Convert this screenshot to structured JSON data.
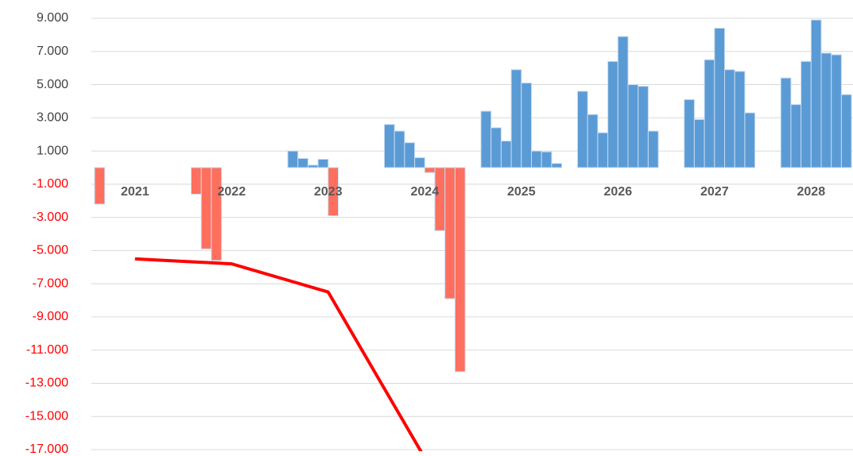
{
  "chart_data": {
    "type": "bar",
    "categories": [
      "2021",
      "2022",
      "2023",
      "2024",
      "2025",
      "2026",
      "2027",
      "2028"
    ],
    "series": [
      {
        "color": "#5b9bd5",
        "negative_color": "#ff6f5e",
        "values": [
          -2200,
          -1600,
          1000,
          2600,
          3400,
          4600,
          null,
          null
        ]
      },
      {
        "color": "#5b9bd5",
        "negative_color": "#ff6f5e",
        "values": [
          null,
          -4900,
          550,
          2200,
          2400,
          3200,
          4100,
          5400
        ]
      },
      {
        "color": "#5b9bd5",
        "negative_color": "#ff6f5e",
        "values": [
          null,
          -5600,
          150,
          1500,
          1600,
          2100,
          2900,
          3800
        ]
      },
      {
        "color": "#5b9bd5",
        "negative_color": "#ff6f5e",
        "values": [
          null,
          null,
          500,
          600,
          5900,
          6400,
          6500,
          6400
        ]
      },
      {
        "color": "#5b9bd5",
        "negative_color": "#ff6f5e",
        "values": [
          null,
          null,
          -2900,
          -300,
          5100,
          7900,
          8400,
          8900
        ]
      },
      {
        "color": "#5b9bd5",
        "negative_color": "#ff6f5e",
        "values": [
          null,
          null,
          null,
          -3800,
          1000,
          5000,
          5900,
          6900
        ]
      },
      {
        "color": "#5b9bd5",
        "negative_color": "#ff6f5e",
        "values": [
          null,
          null,
          null,
          -7900,
          950,
          4900,
          5800,
          6800
        ]
      },
      {
        "color": "#5b9bd5",
        "negative_color": "#ff6f5e",
        "values": [
          null,
          null,
          null,
          -12300,
          250,
          2200,
          3300,
          4400
        ]
      }
    ],
    "line": {
      "color": "#ff0000",
      "values": [
        -5500,
        -5800,
        -7500,
        -17500,
        null,
        null,
        null,
        null
      ]
    },
    "ylim": [
      -17000,
      9000
    ],
    "yticks": [
      {
        "value": 9000,
        "label": "9.000"
      },
      {
        "value": 7000,
        "label": "7.000"
      },
      {
        "value": 5000,
        "label": "5.000"
      },
      {
        "value": 3000,
        "label": "3.000"
      },
      {
        "value": 1000,
        "label": "1.000"
      },
      {
        "value": -1000,
        "label": "-1.000"
      },
      {
        "value": -3000,
        "label": "-3.000"
      },
      {
        "value": -5000,
        "label": "-5.000"
      },
      {
        "value": -7000,
        "label": "-7.000"
      },
      {
        "value": -9000,
        "label": "-9.000"
      },
      {
        "value": -11000,
        "label": "-11.000"
      },
      {
        "value": -13000,
        "label": "-13.000"
      },
      {
        "value": -15000,
        "label": "-15.000"
      },
      {
        "value": -17000,
        "label": "-17.000"
      }
    ],
    "tick_color": "#404040",
    "negative_tick_color": "#ff0000",
    "grid": true
  }
}
